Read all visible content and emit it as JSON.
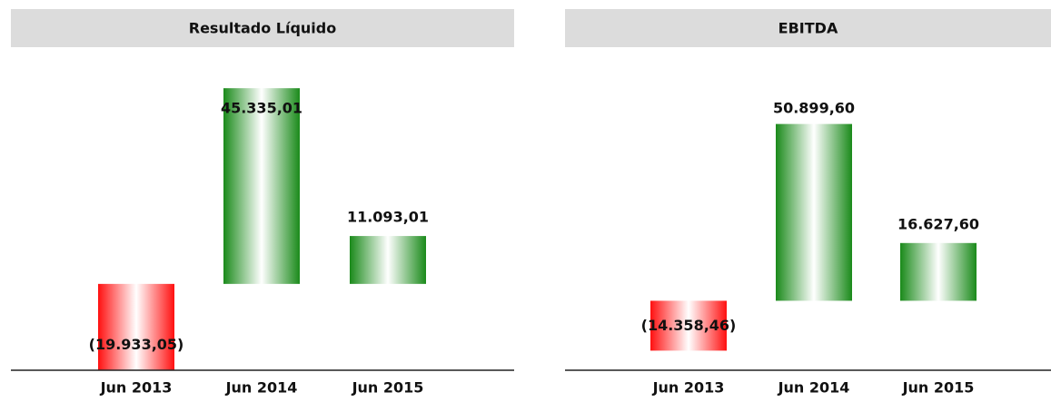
{
  "chart_data": [
    {
      "type": "bar",
      "title": "Resultado Líquido",
      "categories": [
        "Jun 2013",
        "Jun 2014",
        "Jun 2015"
      ],
      "values": [
        -19933.05,
        45335.01,
        11093.01
      ],
      "value_labels": [
        "(19.933,05)",
        "45.335,01",
        "11.093,01"
      ],
      "positive_color": "#1a8a1a",
      "negative_color": "#ff1010",
      "ylim": [
        -20000,
        50000
      ]
    },
    {
      "type": "bar",
      "title": "EBITDA",
      "categories": [
        "Jun 2013",
        "Jun 2014",
        "Jun 2015"
      ],
      "values": [
        -14358.46,
        50899.6,
        16627.6
      ],
      "value_labels": [
        "(14.358,46)",
        "50.899,60",
        "16.627,60"
      ],
      "positive_color": "#1a8a1a",
      "negative_color": "#ff1010",
      "ylim": [
        -20000,
        67000
      ]
    }
  ]
}
